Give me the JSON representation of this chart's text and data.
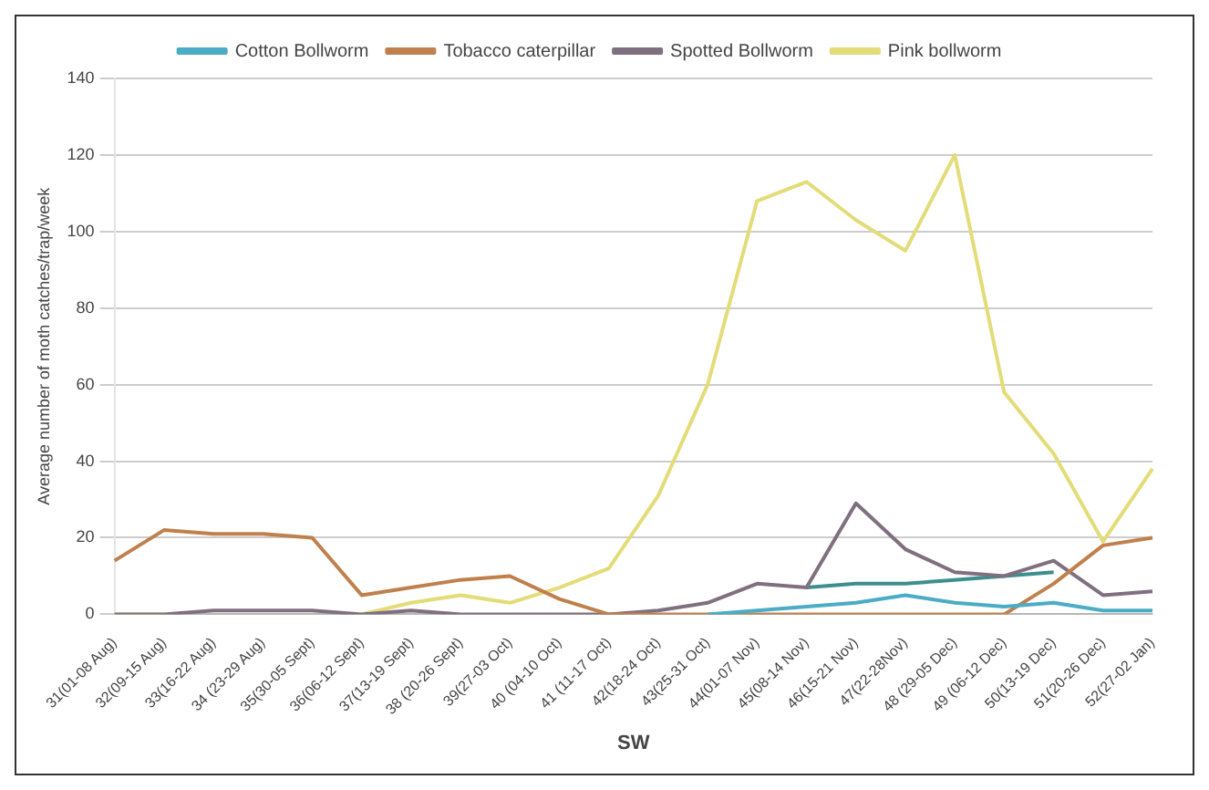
{
  "chart_data": {
    "type": "line",
    "xlabel": "SW",
    "ylabel": "Average number of moth catches/trap/week",
    "categories": [
      "31(01-08 Aug)",
      "32(09-15 Aug)",
      "33(16-22 Aug)",
      "34 (23-29 Aug)",
      "35(30-05 Sept)",
      "36(06-12 Sept)",
      "37(13-19 Sept)",
      "38 (20-26 Sept)",
      "39(27-03 Oct)",
      "40 (04-10 Oct)",
      "41 (11-17 Oct)",
      "42(18-24 Oct)",
      "43(25-31 Oct)",
      "44(01-07 Nov)",
      "45(08-14 Nov)",
      "46(15-21 Nov)",
      "47(22-28Nov)",
      "48 (29-05 Dec)",
      "49 (06-12 Dec)",
      "50(13-19 Dec)",
      "51(20-26 Dec)",
      "52(27-02 Jan)"
    ],
    "series": [
      {
        "name": "Cotton Bollworm",
        "color": "#4bacc6",
        "values": [
          null,
          null,
          null,
          null,
          null,
          null,
          null,
          null,
          null,
          null,
          null,
          null,
          0,
          1,
          2,
          3,
          5,
          3,
          2,
          3,
          1,
          1
        ]
      },
      {
        "name": "Tobacco caterpillar",
        "color": "#c0804d",
        "values": [
          14,
          22,
          21,
          21,
          20,
          5,
          7,
          9,
          10,
          4,
          0,
          0,
          0,
          0,
          0,
          0,
          0,
          0,
          0,
          8,
          18,
          20
        ]
      },
      {
        "name": "Spotted Bollworm",
        "color": "#7f6f7f",
        "values": [
          0,
          0,
          1,
          1,
          1,
          0,
          1,
          0,
          0,
          0,
          0,
          1,
          3,
          8,
          7,
          29,
          17,
          11,
          10,
          14,
          5,
          6
        ]
      },
      {
        "name": "Pink bollworm",
        "color": "#e3dc78",
        "values": [
          0,
          0,
          null,
          null,
          null,
          0,
          3,
          5,
          3,
          7,
          12,
          31,
          60,
          108,
          113,
          103,
          95,
          120,
          58,
          42,
          19,
          38
        ]
      },
      {
        "color": "#3e8e8e",
        "values": [
          null,
          null,
          null,
          null,
          null,
          null,
          null,
          null,
          null,
          null,
          null,
          null,
          null,
          null,
          7,
          8,
          8,
          9,
          10,
          11,
          null,
          null
        ]
      }
    ],
    "ylim": [
      0,
      140
    ],
    "yticks": [
      0,
      20,
      40,
      60,
      80,
      100,
      120,
      140
    ],
    "grid": "y",
    "legend": "top",
    "marker": "none",
    "line_style": "solid"
  }
}
